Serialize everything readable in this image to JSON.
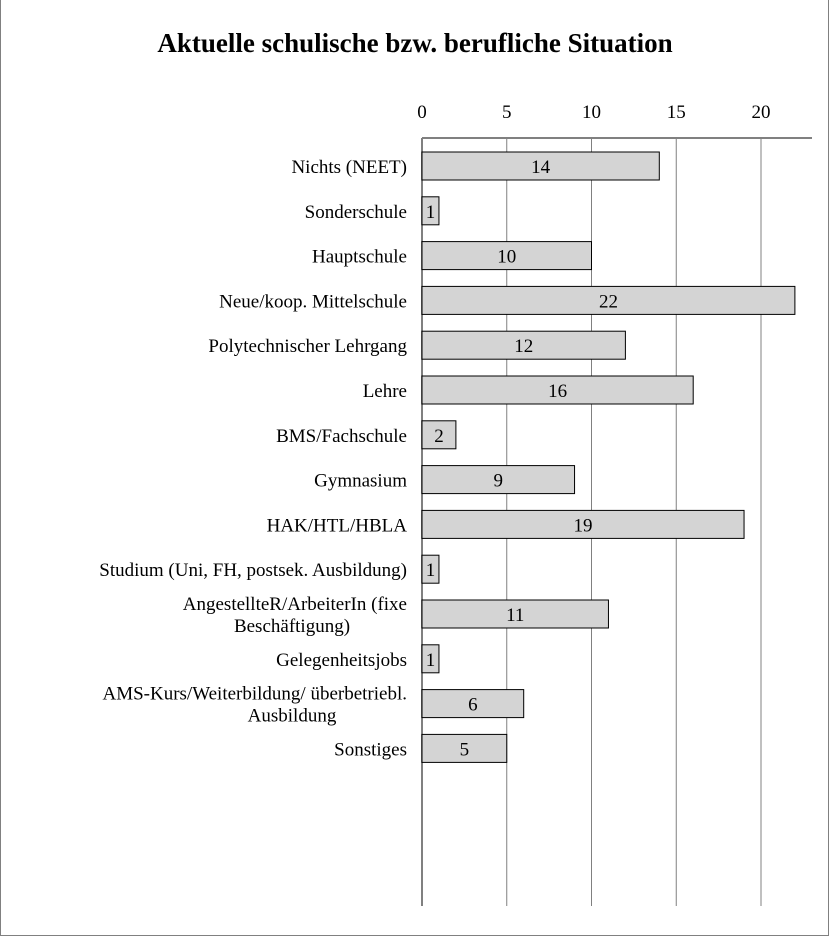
{
  "chart_data": {
    "type": "bar",
    "orientation": "horizontal",
    "title": "Aktuelle schulische bzw. berufliche Situation",
    "xlabel": "",
    "ylabel": "",
    "xlim": [
      0,
      23
    ],
    "ticks": [
      0,
      5,
      10,
      15,
      20
    ],
    "tick_labels": [
      "0",
      "5",
      "10",
      "15",
      "20"
    ],
    "grid": true,
    "bar_color": "#d4d4d4",
    "categories": [
      [
        "Nichts (NEET)"
      ],
      [
        "Sonderschule"
      ],
      [
        "Hauptschule"
      ],
      [
        "Neue/koop. Mittelschule"
      ],
      [
        "Polytechnischer Lehrgang"
      ],
      [
        "Lehre"
      ],
      [
        "BMS/Fachschule"
      ],
      [
        "Gymnasium"
      ],
      [
        "HAK/HTL/HBLA"
      ],
      [
        "Studium (Uni, FH, postsek. Ausbildung)"
      ],
      [
        "AngestellteR/ArbeiterIn (fixe",
        "Beschäftigung)"
      ],
      [
        "Gelegenheitsjobs"
      ],
      [
        "AMS-Kurs/Weiterbildung/ überbetriebl.",
        "Ausbildung"
      ],
      [
        "Sonstiges"
      ]
    ],
    "values": [
      14,
      1,
      10,
      22,
      12,
      16,
      2,
      9,
      19,
      1,
      11,
      1,
      6,
      5
    ],
    "data_labels": [
      "14",
      "1",
      "10",
      "22",
      "12",
      "16",
      "2",
      "9",
      "19",
      "1",
      "11",
      "1",
      "6",
      "5"
    ]
  }
}
